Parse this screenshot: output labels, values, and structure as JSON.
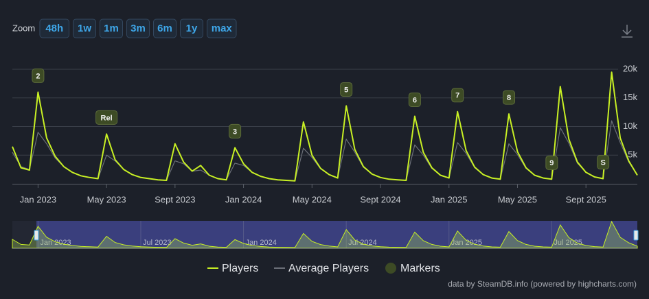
{
  "chart_data": {
    "type": "line",
    "zoom": {
      "label": "Zoom",
      "buttons": [
        "48h",
        "1w",
        "1m",
        "3m",
        "6m",
        "1y",
        "max"
      ]
    },
    "categories": [
      null,
      null,
      null,
      "Jan 2023",
      null,
      null,
      null,
      null,
      null,
      null,
      null,
      "May 2023",
      null,
      null,
      null,
      null,
      null,
      null,
      null,
      "Sept 2023",
      null,
      null,
      null,
      null,
      null,
      null,
      null,
      "Jan 2024",
      null,
      null,
      null,
      null,
      null,
      null,
      null,
      "May 2024",
      null,
      null,
      null,
      null,
      null,
      null,
      null,
      "Sept 2024",
      null,
      null,
      null,
      null,
      null,
      null,
      null,
      "Jan 2025",
      null,
      null,
      null,
      null,
      null,
      null,
      null,
      "May 2025",
      null,
      null,
      null,
      null,
      null,
      null,
      null,
      "Sept 2025",
      null,
      null,
      null,
      null,
      null,
      null
    ],
    "series": [
      {
        "name": "Players",
        "color": "#c8f024",
        "values": [
          6500,
          2800,
          2400,
          16000,
          8000,
          4800,
          3000,
          2000,
          1400,
          1100,
          900,
          8700,
          4200,
          2500,
          1600,
          1100,
          900,
          700,
          600,
          7000,
          3800,
          2200,
          3200,
          1500,
          900,
          700,
          6300,
          3500,
          2000,
          1300,
          900,
          700,
          600,
          500,
          10800,
          5000,
          2700,
          1600,
          1000,
          13600,
          6000,
          3000,
          1700,
          1100,
          800,
          700,
          600,
          11800,
          5500,
          2800,
          1500,
          1000,
          12600,
          5800,
          2900,
          1600,
          1000,
          800,
          12200,
          5600,
          2800,
          1500,
          1000,
          800,
          17000,
          7800,
          3800,
          2000,
          1200,
          900,
          19500,
          8000,
          4000,
          1500
        ]
      },
      {
        "name": "Average Players",
        "color": "#6b6f78",
        "values": [
          5500,
          3000,
          2500,
          9000,
          7000,
          4500,
          3000,
          2000,
          1400,
          1100,
          900,
          5000,
          4000,
          2500,
          1600,
          1100,
          900,
          700,
          600,
          4000,
          3500,
          2200,
          2400,
          1500,
          900,
          700,
          3600,
          3200,
          2000,
          1300,
          900,
          700,
          600,
          500,
          6200,
          4600,
          2600,
          1600,
          1000,
          7800,
          5500,
          2900,
          1700,
          1100,
          800,
          700,
          600,
          6800,
          5000,
          2700,
          1500,
          1000,
          7200,
          5300,
          2800,
          1600,
          1000,
          800,
          7000,
          5100,
          2700,
          1500,
          1000,
          800,
          9800,
          7100,
          3600,
          2000,
          1200,
          900,
          11000,
          7200,
          3800,
          1500
        ]
      }
    ],
    "markers": {
      "name": "Markers",
      "color": "#3d4b25",
      "labels": [
        null,
        null,
        null,
        "2",
        null,
        null,
        null,
        null,
        null,
        null,
        null,
        "Rel",
        null,
        null,
        null,
        null,
        null,
        null,
        null,
        null,
        null,
        null,
        null,
        null,
        null,
        null,
        "3",
        null,
        null,
        null,
        null,
        null,
        null,
        null,
        null,
        null,
        null,
        null,
        null,
        "5",
        null,
        null,
        null,
        null,
        null,
        null,
        null,
        "6",
        null,
        null,
        null,
        null,
        "7",
        null,
        null,
        null,
        null,
        null,
        "8",
        null,
        null,
        null,
        null,
        "9",
        null,
        null,
        null,
        null,
        null,
        "S",
        null,
        null,
        null,
        null
      ]
    },
    "ylim": [
      0,
      20000
    ],
    "yticks": [
      {
        "value": 5000,
        "label": "5k"
      },
      {
        "value": 10000,
        "label": "10k"
      },
      {
        "value": 15000,
        "label": "15k"
      },
      {
        "value": 20000,
        "label": "20k"
      }
    ],
    "grid": true,
    "navigator": {
      "labels": [
        null,
        null,
        null,
        "Jan 2023",
        null,
        null,
        null,
        null,
        null,
        null,
        null,
        null,
        null,
        null,
        null,
        "Jul 2023",
        null,
        null,
        null,
        null,
        null,
        null,
        null,
        null,
        null,
        null,
        null,
        "Jan 2024",
        null,
        null,
        null,
        null,
        null,
        null,
        null,
        null,
        null,
        null,
        null,
        "Jul 2024",
        null,
        null,
        null,
        null,
        null,
        null,
        null,
        null,
        null,
        null,
        null,
        "Jan 2025",
        null,
        null,
        null,
        null,
        null,
        null,
        null,
        null,
        null,
        null,
        null,
        "Jul 2025",
        null,
        null,
        null,
        null,
        null,
        null,
        null,
        null,
        null,
        null
      ]
    },
    "credit": "data by SteamDB.info (powered by highcharts.com)"
  }
}
